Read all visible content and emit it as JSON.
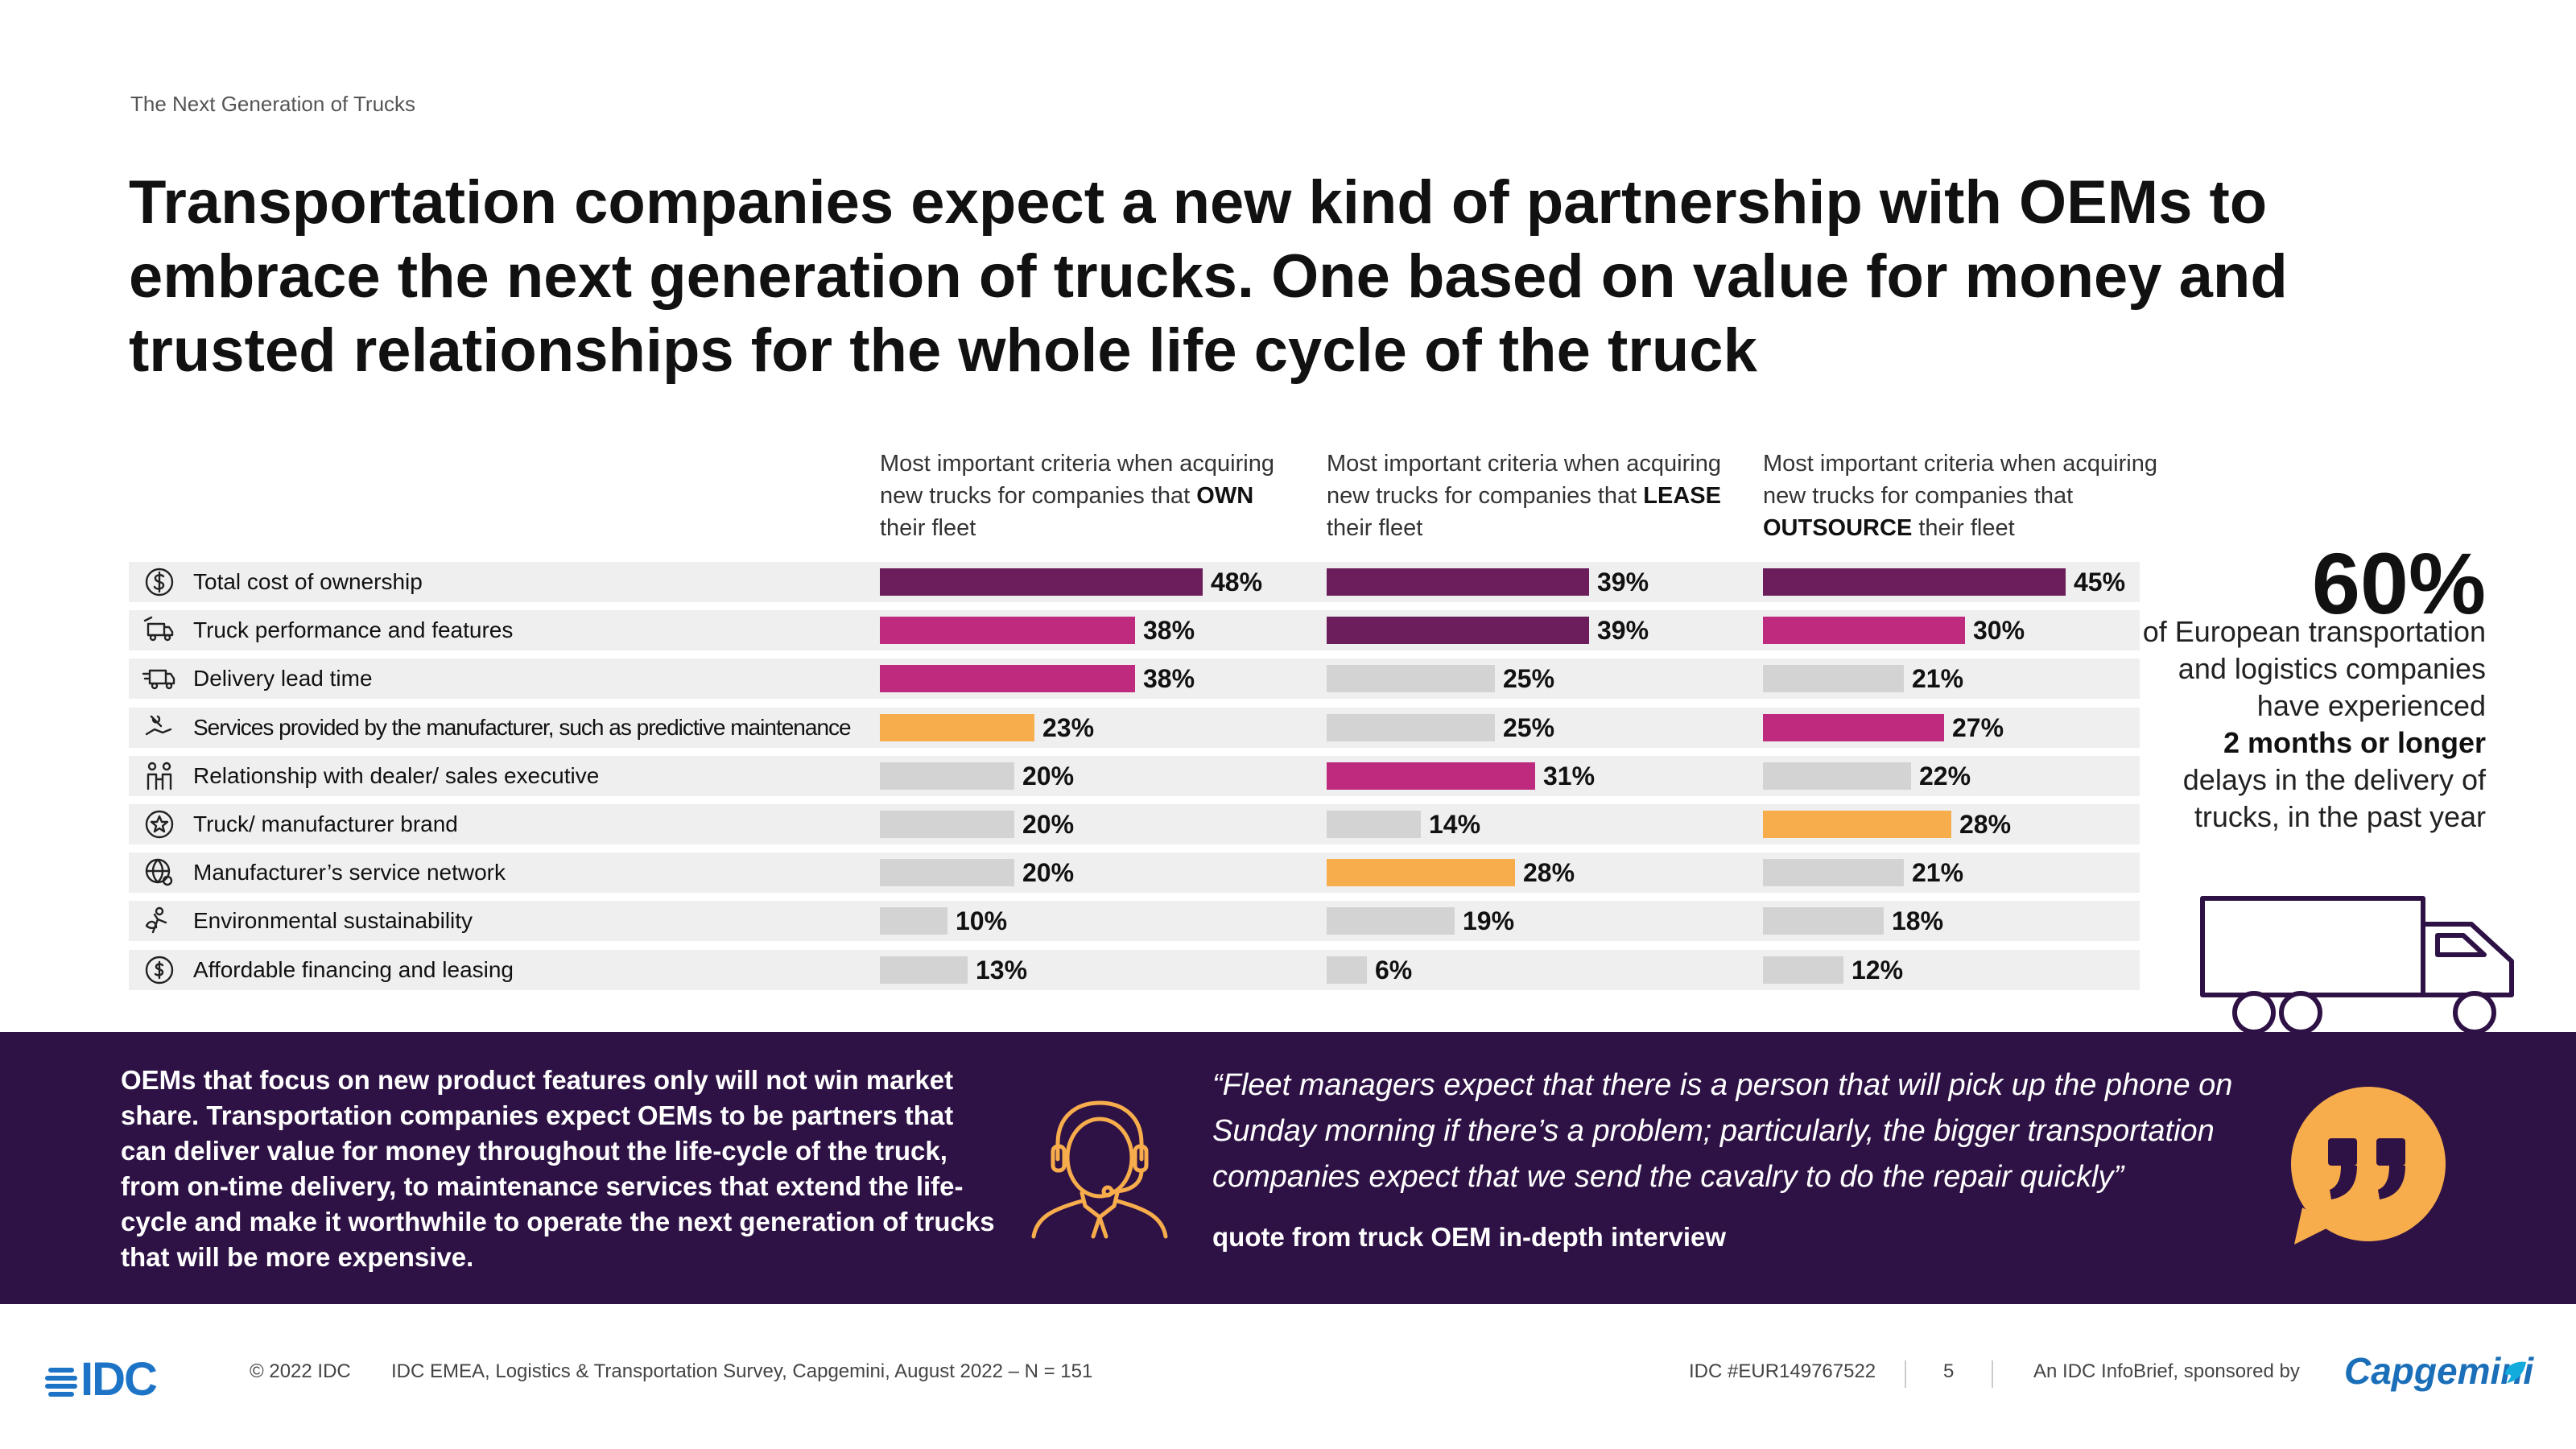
{
  "header": {
    "eyebrow": "The Next Generation of Trucks",
    "headline": "Transportation companies expect a new kind of partnership with OEMs to embrace the next generation of trucks. One based on value for money and trusted relationships for the whole life cycle of the truck"
  },
  "colors": {
    "dark_purple": "#6b1e5b",
    "magenta": "#bd2a7e",
    "orange": "#f8ad4c",
    "grey": "#d3d3d3",
    "band": "#2e1245",
    "idc_blue": "#1d74c7",
    "capgemini_blue": "#1b6fb9"
  },
  "columns": [
    {
      "pre": "Most important criteria when acquiring new trucks for companies that ",
      "emph": "OWN",
      "post": " their fleet"
    },
    {
      "pre": "Most important criteria when acquiring new trucks for companies that ",
      "emph": "LEASE",
      "post": " their fleet"
    },
    {
      "pre": "Most important criteria when acquiring new trucks for companies that ",
      "emph": "OUTSOURCE",
      "post": " their fleet"
    }
  ],
  "chart_data": {
    "type": "bar",
    "orientation": "horizontal",
    "unit": "%",
    "categories": [
      "Total cost of ownership",
      "Truck performance and features",
      "Delivery lead time",
      "Services provided by the manufacturer, such as predictive maintenance",
      "Relationship with dealer/ sales executive",
      "Truck/ manufacturer brand",
      "Manufacturer’s service network",
      "Environmental sustainability",
      "Affordable financing and leasing"
    ],
    "category_icons": [
      "dollar-circle-icon",
      "truck-wrench-icon",
      "delivery-truck-icon",
      "hand-wrench-icon",
      "handshake-people-icon",
      "star-badge-icon",
      "globe-network-icon",
      "leaf-person-icon",
      "coin-cycle-icon"
    ],
    "series": [
      {
        "values": [
          48,
          38,
          38,
          23,
          20,
          20,
          20,
          10,
          13
        ],
        "colors": [
          "dark_purple",
          "magenta",
          "magenta",
          "orange",
          "grey",
          "grey",
          "grey",
          "grey",
          "grey"
        ]
      },
      {
        "values": [
          39,
          39,
          25,
          25,
          31,
          14,
          28,
          19,
          6
        ],
        "colors": [
          "dark_purple",
          "dark_purple",
          "grey",
          "grey",
          "magenta",
          "grey",
          "orange",
          "grey",
          "grey"
        ]
      },
      {
        "values": [
          45,
          30,
          21,
          27,
          22,
          28,
          21,
          18,
          12
        ],
        "colors": [
          "dark_purple",
          "magenta",
          "grey",
          "magenta",
          "grey",
          "orange",
          "grey",
          "grey",
          "grey"
        ]
      }
    ],
    "xlim": [
      0,
      50
    ]
  },
  "stat": {
    "big": "60%",
    "line1": "of European transportation and logistics companies have experienced",
    "strong": "2 months or longer",
    "line2": "delays in the delivery of trucks, in the past year"
  },
  "band": {
    "text": "OEMs that focus on new product features only will not win market share. Transportation companies expect OEMs to be partners that can deliver value for money throughout the life-cycle of the truck, from on-time delivery, to maintenance services that extend the life-cycle and make it worthwhile to operate the next generation of trucks that will be more expensive.",
    "quote": "“Fleet managers expect that there is a person that will pick up the phone on Sunday morning if there’s a problem; particularly, the bigger transportation companies expect that we send the cavalry to do the repair quickly”",
    "quote_source": "quote from truck OEM in-depth interview"
  },
  "footer": {
    "idc_logo": "IDC",
    "copyright": "© 2022 IDC",
    "source": "IDC EMEA, Logistics & Transportation Survey, Capgemini, August 2022 – N = 151",
    "doc_id": "IDC #EUR149767522",
    "page": "5",
    "sponsor": "An IDC InfoBrief, sponsored by",
    "capgemini_logo": "Capgemini"
  }
}
